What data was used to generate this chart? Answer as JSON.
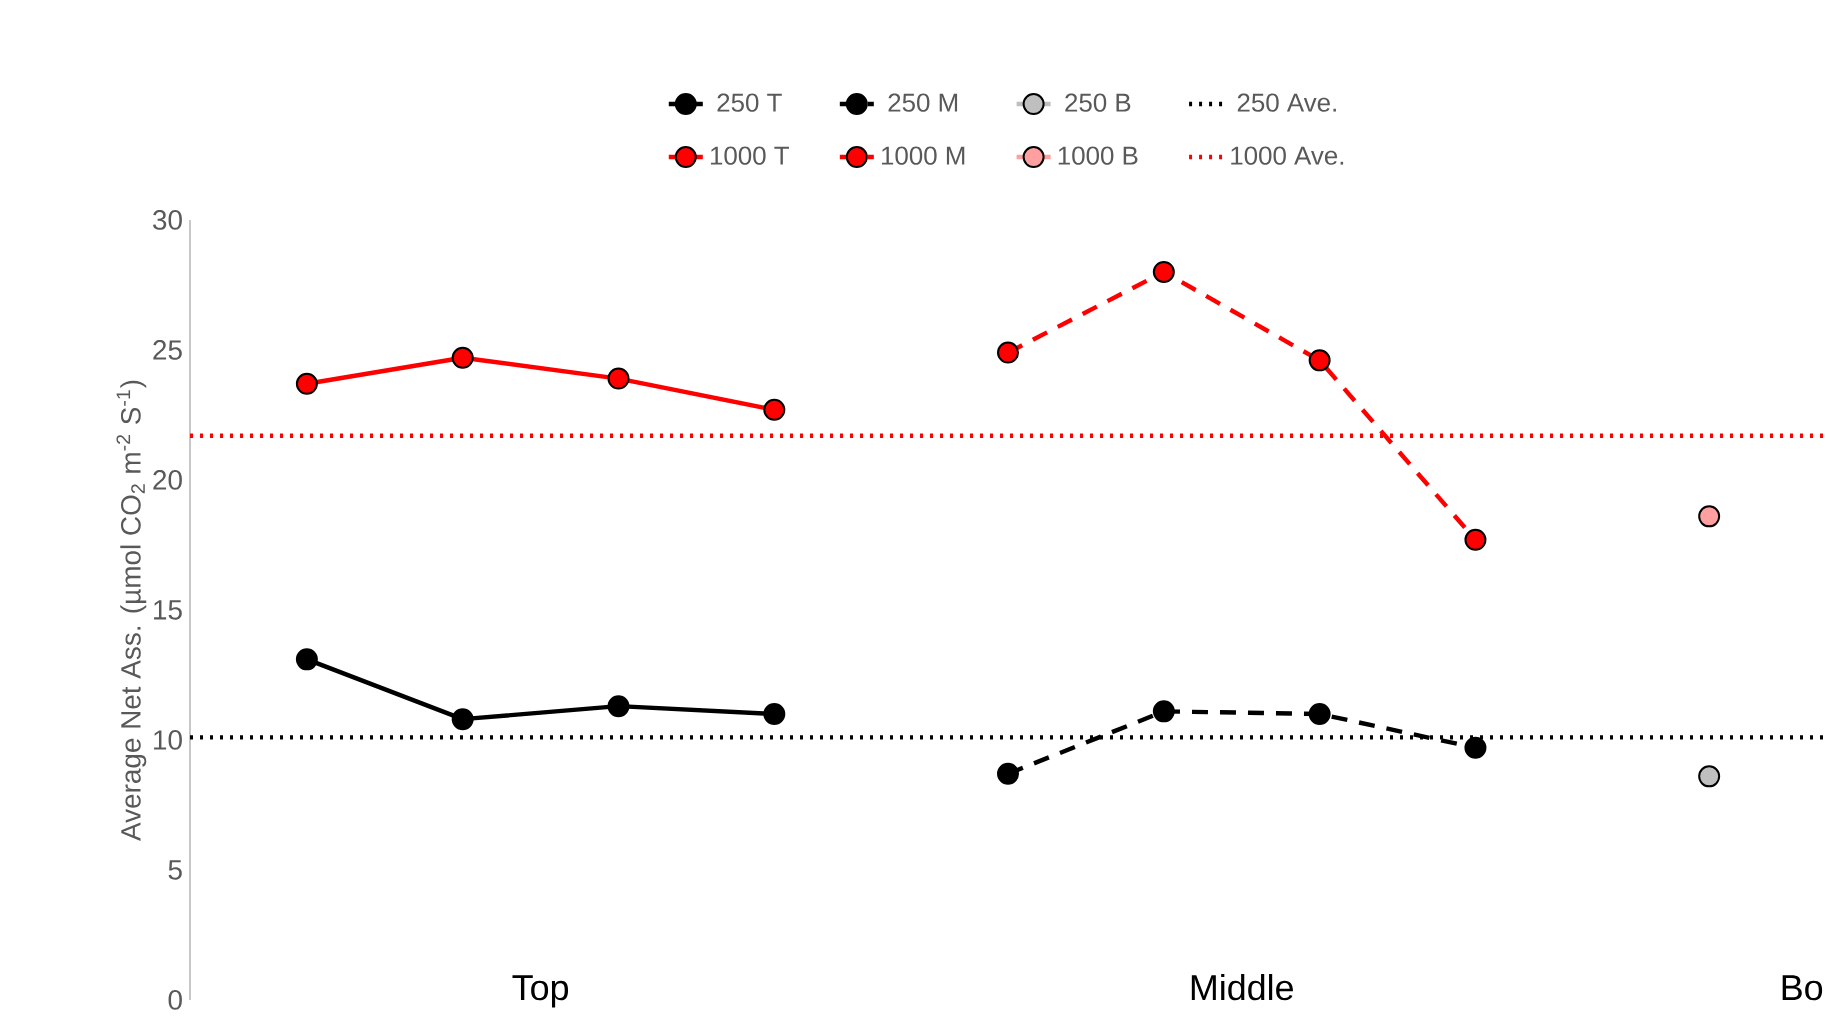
{
  "chart_data": {
    "type": "line",
    "ylabel": "Average Net Ass. (µmol CO$_{2}$ m$^{-2}$ S$^{-1}$)",
    "categories": [
      null,
      null,
      null,
      null,
      null,
      null,
      null,
      null,
      null,
      null,
      null,
      null,
      null,
      null,
      null,
      null,
      null,
      null,
      null,
      null,
      null
    ],
    "ylim": [
      0,
      30
    ],
    "yticks": [
      0,
      5,
      10,
      15,
      20,
      25,
      30
    ],
    "grid": false,
    "legend": "top",
    "marker": "circle",
    "annotations": [
      "Top",
      "Middle",
      "Bo"
    ],
    "series": [
      {
        "name": "250 T",
        "color": "#000000",
        "line_style": "solid",
        "values": [
          null,
          13.1,
          null,
          10.8,
          null,
          11.3,
          null,
          11.0,
          null,
          null,
          null,
          null,
          null,
          null,
          null,
          null,
          null,
          null,
          null,
          null,
          null
        ]
      },
      {
        "name": "250 M",
        "color": "#000000",
        "line_style": "dashed",
        "values": [
          null,
          null,
          null,
          null,
          null,
          null,
          null,
          null,
          null,
          null,
          8.7,
          null,
          11.1,
          null,
          11.0,
          null,
          9.7,
          null,
          null,
          null,
          null
        ]
      },
      {
        "name": "250 B",
        "color": "#bfbfbf",
        "line_style": "solid",
        "values": [
          null,
          null,
          null,
          null,
          null,
          null,
          null,
          null,
          null,
          null,
          null,
          null,
          null,
          null,
          null,
          null,
          null,
          null,
          null,
          8.6,
          null
        ]
      },
      {
        "name": "1000 T",
        "color": "#ff0000",
        "line_style": "solid",
        "values": [
          null,
          23.7,
          null,
          24.7,
          null,
          23.9,
          null,
          22.7,
          null,
          null,
          null,
          null,
          null,
          null,
          null,
          null,
          null,
          null,
          null,
          null,
          null
        ]
      },
      {
        "name": "1000 M",
        "color": "#ff0000",
        "line_style": "dashed",
        "values": [
          null,
          null,
          null,
          null,
          null,
          null,
          null,
          null,
          null,
          null,
          24.9,
          null,
          28.0,
          null,
          24.6,
          null,
          17.7,
          null,
          null,
          null,
          null
        ]
      },
      {
        "name": "1000 B",
        "color": "#ff9f9f",
        "line_style": "solid",
        "values": [
          null,
          null,
          null,
          null,
          null,
          null,
          null,
          null,
          null,
          null,
          null,
          null,
          null,
          null,
          null,
          null,
          null,
          null,
          null,
          18.6,
          null
        ]
      }
    ],
    "ref_lines": [
      {
        "axis": "y",
        "value": 10.1,
        "label": "250 Ave.",
        "color": "#000000",
        "line_style": "dotted"
      },
      {
        "axis": "y",
        "value": 21.7,
        "label": "1000 Ave.",
        "color": "#ff0000",
        "line_style": "dotted"
      }
    ]
  }
}
